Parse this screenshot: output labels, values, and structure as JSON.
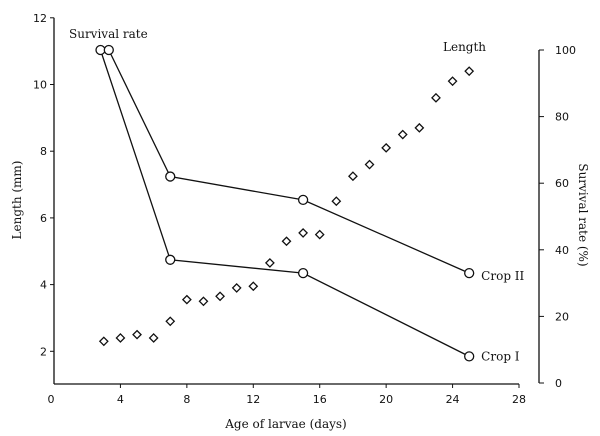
{
  "chart_data": {
    "type": "line",
    "title": "",
    "xlabel": "Age of larvae (days)",
    "ylabel_left": "Length (mm)",
    "ylabel_right": "Survival rate (%)",
    "xlim": [
      0,
      28
    ],
    "ylim_left": [
      1,
      12
    ],
    "ylim_right": [
      0,
      100
    ],
    "xticks": [
      0,
      4,
      8,
      12,
      16,
      20,
      24,
      28
    ],
    "yticks_left": [
      2,
      4,
      6,
      8,
      10,
      12
    ],
    "yticks_right": [
      0,
      20,
      40,
      60,
      80,
      100
    ],
    "grid": false,
    "annotations": {
      "survival": "Survival rate",
      "length": "Length"
    },
    "length_series": {
      "name": "Length",
      "axis": "left",
      "marker": "diamond",
      "x": [
        3,
        4,
        5,
        6,
        7,
        8,
        9,
        10,
        11,
        12,
        13,
        14,
        15,
        16,
        17,
        18,
        19,
        20,
        21,
        22,
        23,
        24,
        25
      ],
      "y": [
        2.3,
        2.4,
        2.5,
        2.4,
        2.9,
        3.55,
        3.5,
        3.65,
        3.9,
        3.95,
        4.65,
        5.3,
        5.55,
        5.5,
        6.5,
        7.25,
        7.6,
        8.1,
        8.5,
        8.7,
        9.6,
        10.1,
        10.4
      ]
    },
    "series": [
      {
        "name": "Crop I",
        "axis": "right",
        "marker": "circle",
        "x": [
          2.8,
          7,
          15,
          25
        ],
        "y": [
          100,
          37,
          33,
          8
        ]
      },
      {
        "name": "Crop II",
        "axis": "right",
        "marker": "circle",
        "x": [
          3.3,
          7,
          15,
          25
        ],
        "y": [
          100,
          62,
          55,
          33
        ]
      }
    ]
  }
}
